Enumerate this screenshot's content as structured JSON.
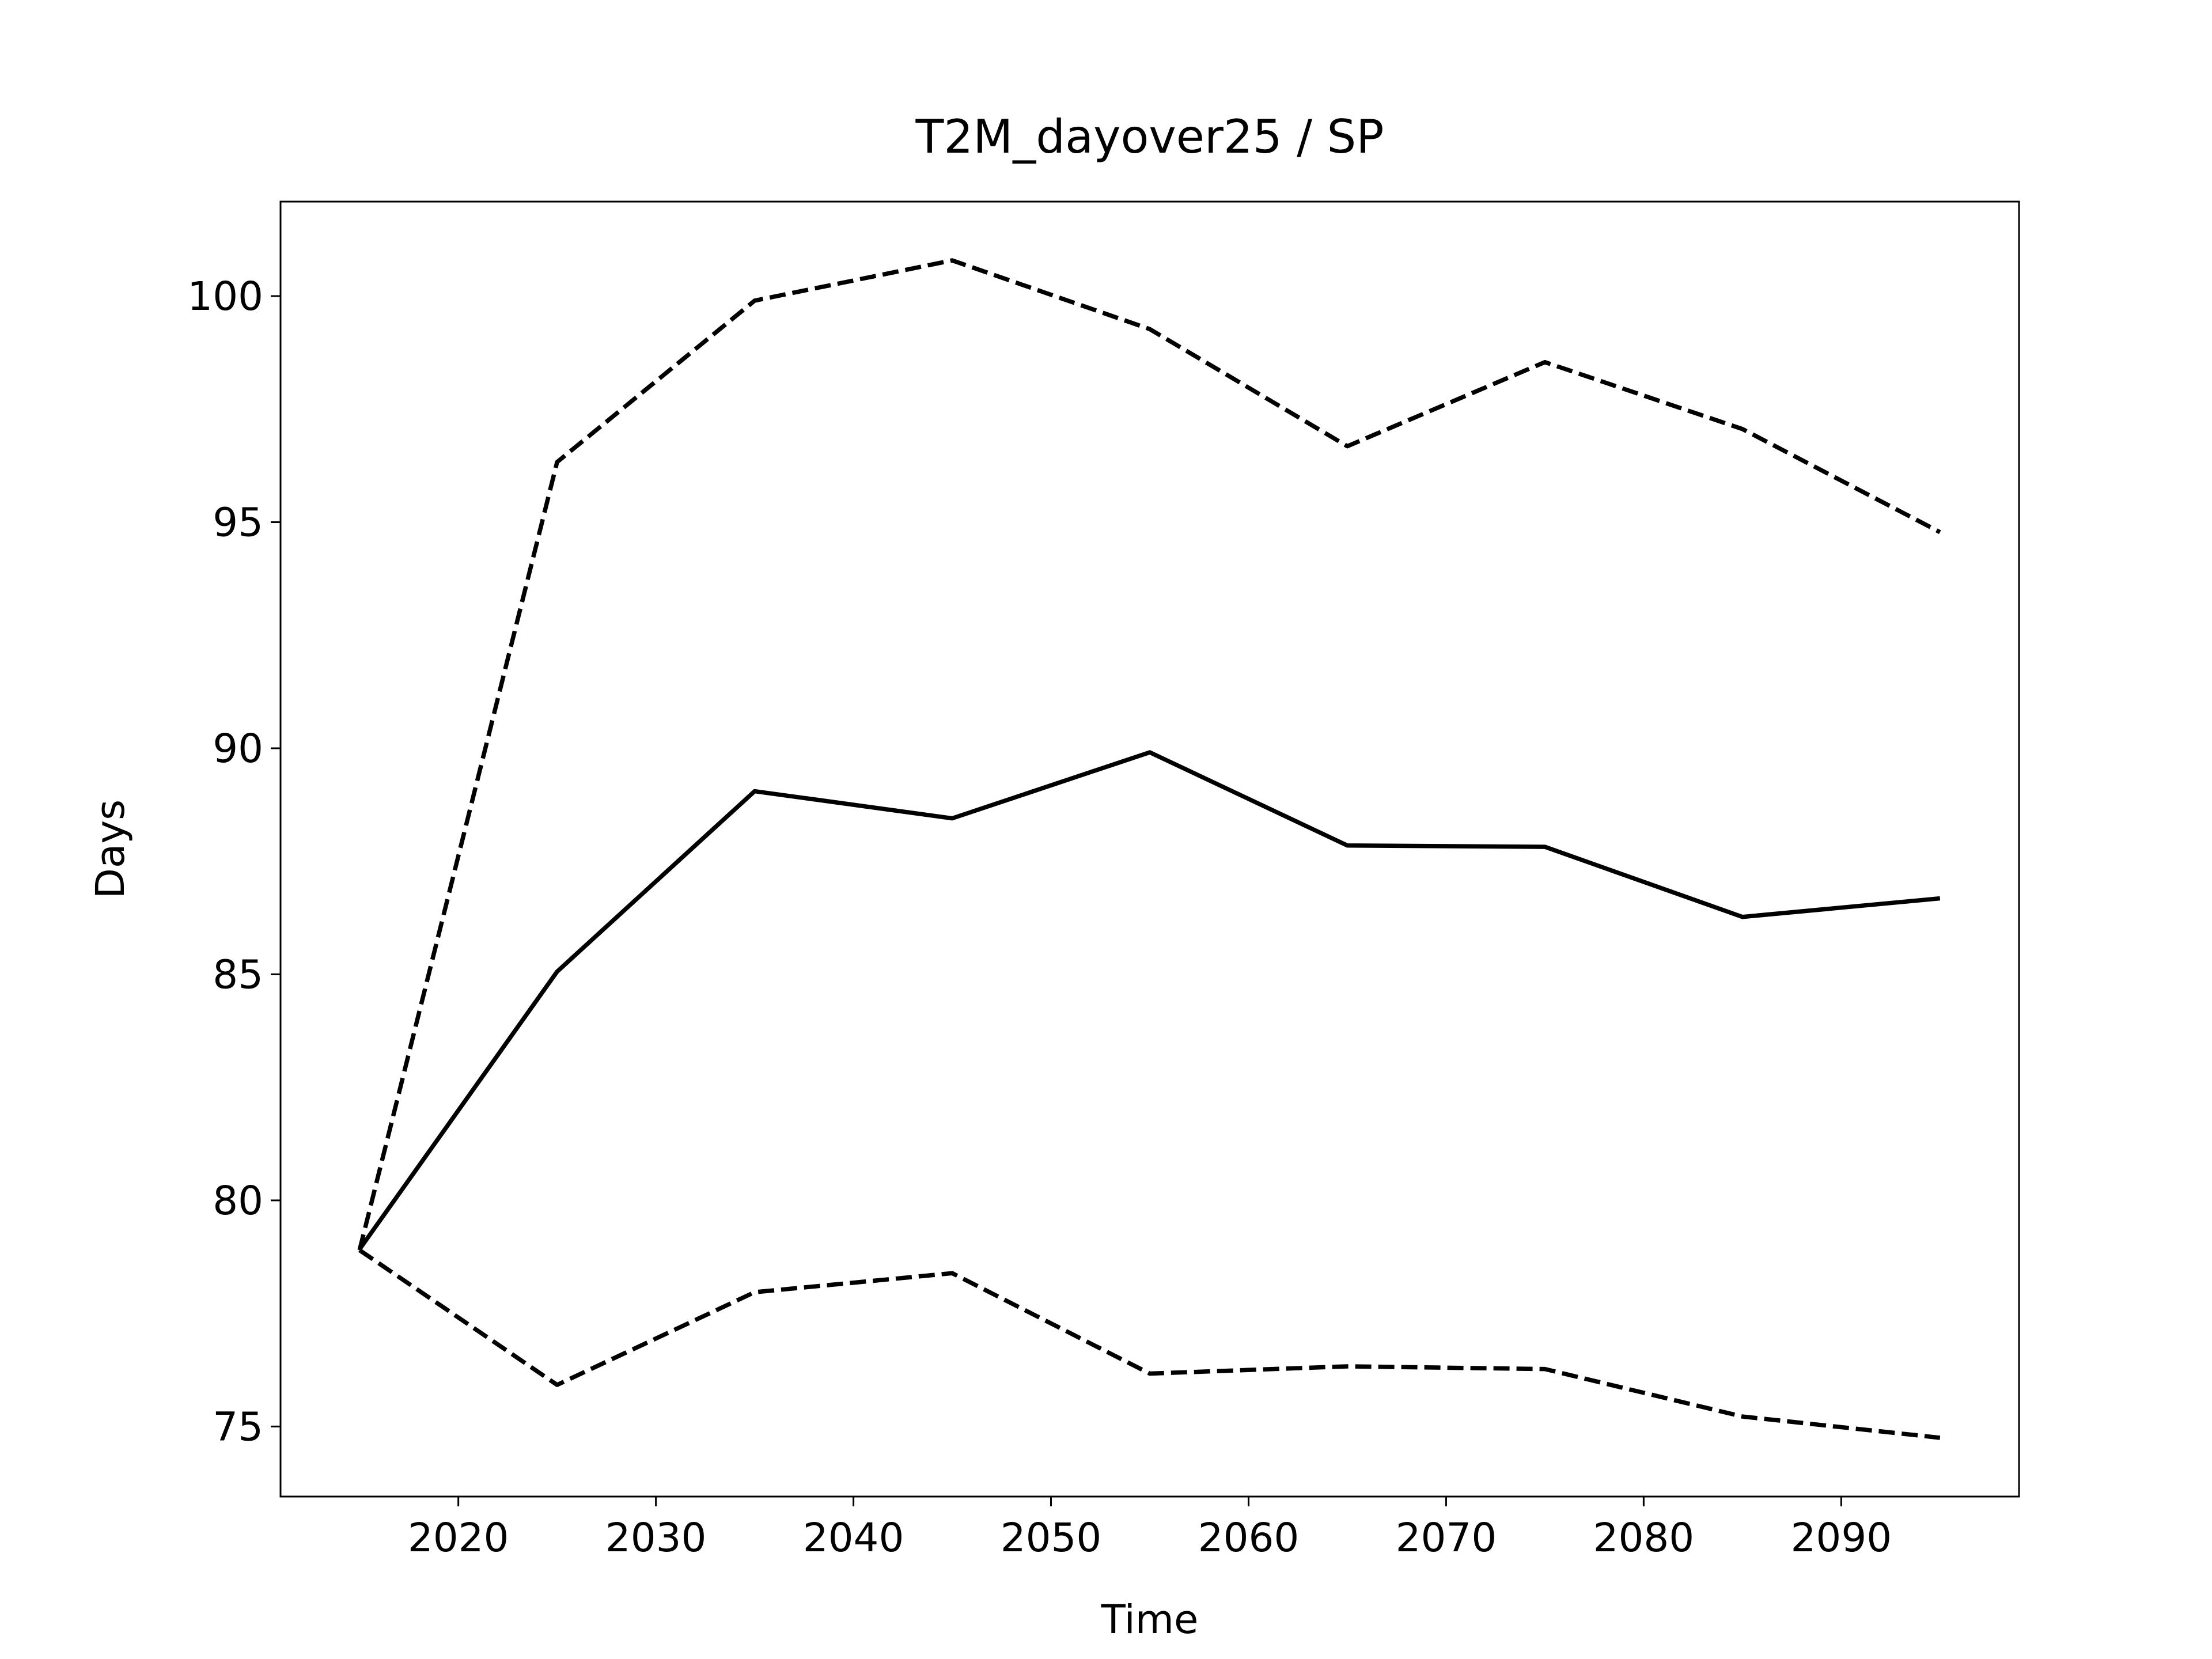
{
  "chart_data": {
    "type": "line",
    "title": "T2M_dayover25 / SP",
    "xlabel": "Time",
    "ylabel": "Days",
    "x": [
      2015,
      2025,
      2035,
      2045,
      2055,
      2065,
      2075,
      2085,
      2095
    ],
    "series": [
      {
        "color": "#000000",
        "dash": "solid",
        "values": [
          78.92,
          85.06,
          89.05,
          88.45,
          89.91,
          87.85,
          87.82,
          86.27,
          86.68
        ]
      },
      {
        "color": "#000000",
        "dash": "dashed",
        "values": [
          78.9,
          96.33,
          99.9,
          100.79,
          99.27,
          96.68,
          98.54,
          97.06,
          94.78
        ]
      },
      {
        "color": "#000000",
        "dash": "dashed",
        "values": [
          78.9,
          75.92,
          77.97,
          78.39,
          76.17,
          76.33,
          76.27,
          75.22,
          74.75
        ]
      }
    ],
    "xlim": [
      2011,
      2099
    ],
    "xticks": [
      2020,
      2030,
      2040,
      2050,
      2060,
      2070,
      2080,
      2090
    ],
    "ylim": [
      73.45,
      102.09
    ],
    "yticks": [
      75,
      80,
      85,
      90,
      95,
      100
    ],
    "grid": false
  }
}
